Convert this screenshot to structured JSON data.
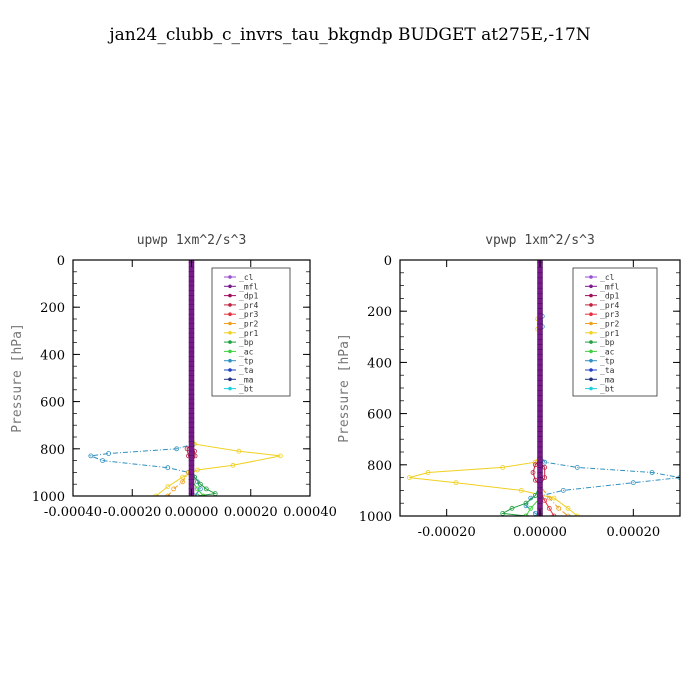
{
  "title": "jan24_clubb_c_invrs_tau_bkgndp  BUDGET at275E,-17N",
  "legend_entries": [
    {
      "name": "_cl",
      "color": "#9a4fd0"
    },
    {
      "name": "_mfl",
      "color": "#7a1a8a"
    },
    {
      "name": "_dp1",
      "color": "#a01060"
    },
    {
      "name": "_pr4",
      "color": "#c02040"
    },
    {
      "name": "_pr3",
      "color": "#e83040"
    },
    {
      "name": "_pr2",
      "color": "#f0a020"
    },
    {
      "name": "_pr1",
      "color": "#f0d020"
    },
    {
      "name": "_bp",
      "color": "#20a040"
    },
    {
      "name": "_ac",
      "color": "#40d040"
    },
    {
      "name": "_tp",
      "color": "#3090c0"
    },
    {
      "name": "_ta",
      "color": "#2040c0"
    },
    {
      "name": "_ma",
      "color": "#203080"
    },
    {
      "name": "_bt",
      "color": "#20d0e0"
    }
  ],
  "chart_data": [
    {
      "type": "line",
      "title": "upwp   1xm^2/s^3",
      "ylabel": "Pressure  [hPa]",
      "xlabel": "",
      "xlim": [
        -0.0004,
        0.0004
      ],
      "ylim": [
        1000,
        0
      ],
      "xticks": [
        "-0.00040",
        "-0.00020",
        "0.00000",
        "0.00020",
        "0.00040"
      ],
      "xtick_values": [
        -0.0004,
        -0.0002,
        0,
        0.0002,
        0.0004
      ],
      "yticks": [
        "0",
        "200",
        "400",
        "600",
        "800",
        "1000"
      ],
      "ytick_values": [
        0,
        200,
        400,
        600,
        800,
        1000
      ],
      "series": [
        {
          "name": "_tp",
          "color": "#3090c0",
          "x": [
            0,
            0,
            5e-06,
            -5e-05,
            -0.00028,
            -0.00034,
            -0.0003,
            -8e-05,
            -1e-05,
            1e-05,
            2e-05,
            3e-05,
            1e-05
          ],
          "y": [
            0,
            700,
            780,
            800,
            820,
            830,
            850,
            880,
            900,
            920,
            940,
            970,
            1000
          ]
        },
        {
          "name": "_pr1",
          "color": "#f0d020",
          "x": [
            0,
            0,
            1e-05,
            0.00016,
            0.0003,
            0.00014,
            2e-05,
            -3e-05,
            -8e-05,
            -0.00012
          ],
          "y": [
            0,
            700,
            780,
            810,
            830,
            870,
            890,
            920,
            960,
            1000
          ]
        },
        {
          "name": "_pr2",
          "color": "#f0a020",
          "x": [
            0,
            0,
            -1e-05,
            -3e-05,
            -6e-05,
            -8e-05
          ],
          "y": [
            0,
            850,
            900,
            940,
            970,
            1000
          ]
        },
        {
          "name": "_pr4",
          "color": "#c02040",
          "x": [
            0,
            0,
            -1.5e-05,
            -1e-05,
            0,
            1.2e-05,
            1e-05,
            0
          ],
          "y": [
            0,
            780,
            800,
            830,
            860,
            830,
            810,
            790
          ]
        },
        {
          "name": "_bp",
          "color": "#20a040",
          "x": [
            0,
            0,
            1e-05,
            3e-05,
            5e-05,
            8e-05,
            2e-05
          ],
          "y": [
            0,
            880,
            920,
            950,
            970,
            990,
            1000
          ]
        },
        {
          "name": "_ac",
          "color": "#40d040",
          "x": [
            0,
            0,
            2e-05,
            4e-05
          ],
          "y": [
            0,
            930,
            970,
            1000
          ]
        },
        {
          "name": "_mfl",
          "color": "#7a1a8a",
          "x": [
            0,
            0,
            0
          ],
          "y": [
            0,
            500,
            1000
          ]
        }
      ]
    },
    {
      "type": "line",
      "title": "vpwp   1xm^2/s^3",
      "ylabel": "Pressure  [hPa]",
      "xlabel": "",
      "xlim": [
        -0.0003,
        0.0003
      ],
      "ylim": [
        1000,
        0
      ],
      "xticks": [
        "-0.00020",
        "0.00000",
        "0.00020"
      ],
      "xtick_values": [
        -0.0002,
        0,
        0.0002
      ],
      "yticks": [
        "0",
        "200",
        "400",
        "600",
        "800",
        "1000"
      ],
      "ytick_values": [
        0,
        200,
        400,
        600,
        800,
        1000
      ],
      "series": [
        {
          "name": "_tp",
          "color": "#3090c0",
          "x": [
            0,
            0,
            5e-06,
            5e-06,
            0,
            0,
            1e-05,
            8e-05,
            0.00024,
            0.0003,
            0.0002,
            5e-05,
            -2e-05,
            -3e-05,
            -1e-05,
            0
          ],
          "y": [
            0,
            180,
            220,
            260,
            300,
            760,
            790,
            810,
            830,
            850,
            870,
            900,
            930,
            960,
            990,
            1000
          ]
        },
        {
          "name": "_pr1",
          "color": "#f0d020",
          "x": [
            0,
            0,
            -5e-06,
            -5e-06,
            0,
            0,
            -1e-05,
            -8e-05,
            -0.00024,
            -0.00028,
            -0.00018,
            -4e-05,
            3e-05,
            6e-05,
            8e-05
          ],
          "y": [
            0,
            200,
            230,
            270,
            300,
            760,
            790,
            810,
            830,
            850,
            870,
            900,
            930,
            970,
            1000
          ]
        },
        {
          "name": "_pr2",
          "color": "#f0a020",
          "x": [
            0,
            0,
            2e-05,
            4e-05,
            6e-05
          ],
          "y": [
            0,
            880,
            930,
            970,
            1000
          ]
        },
        {
          "name": "_pr4",
          "color": "#c02040",
          "x": [
            0,
            0,
            -1e-05,
            -1.5e-05,
            -1e-05,
            0,
            1e-05,
            1e-05,
            0
          ],
          "y": [
            0,
            780,
            800,
            830,
            860,
            880,
            850,
            810,
            790
          ]
        },
        {
          "name": "_pr3",
          "color": "#e83040",
          "x": [
            0,
            0,
            1e-05,
            2e-05,
            3e-05
          ],
          "y": [
            0,
            900,
            940,
            970,
            1000
          ]
        },
        {
          "name": "_bp",
          "color": "#20a040",
          "x": [
            0,
            0,
            -1e-05,
            -3e-05,
            -6e-05,
            -8e-05,
            -3e-05
          ],
          "y": [
            0,
            880,
            920,
            950,
            970,
            990,
            1000
          ]
        },
        {
          "name": "_ac",
          "color": "#40d040",
          "x": [
            0,
            0,
            -2e-05,
            -3e-05
          ],
          "y": [
            0,
            930,
            970,
            1000
          ]
        },
        {
          "name": "_mfl",
          "color": "#7a1a8a",
          "x": [
            0,
            0,
            0
          ],
          "y": [
            0,
            500,
            1000
          ]
        }
      ]
    }
  ]
}
